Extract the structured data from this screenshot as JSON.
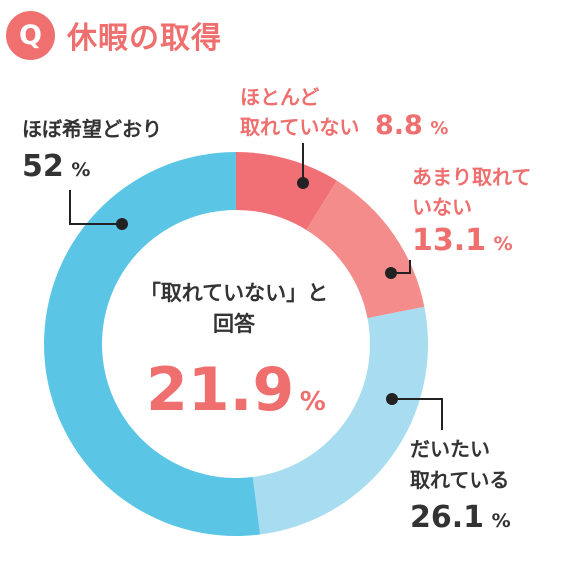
{
  "header": {
    "badge": "Q",
    "title": "休暇の取得"
  },
  "center": {
    "line1": "「取れていない」と",
    "line2": "回答",
    "value": "21.9",
    "unit": "%"
  },
  "colors": {
    "hotondo": "#f07076",
    "amari": "#f48c8c",
    "daitai": "#a8dcf0",
    "hobo": "#5bc5e6",
    "pink_text": "#ef6e6e",
    "dark_text": "#333333"
  },
  "chart_data": {
    "type": "pie",
    "variant": "donut",
    "title": "休暇の取得",
    "unit": "%",
    "series": [
      {
        "label": "ほとんど取れていない",
        "value": 8.8
      },
      {
        "label": "あまり取れていない",
        "value": 13.1
      },
      {
        "label": "だいたい取れている",
        "value": 26.1
      },
      {
        "label": "ほぼ希望どおり",
        "value": 52
      }
    ],
    "center_annotation": {
      "text": "「取れていない」と回答",
      "value": 21.9
    }
  },
  "labels": {
    "hotondo": {
      "line1": "ほとんど",
      "line2": "取れていない",
      "num": "8.8",
      "unit": "%"
    },
    "amari": {
      "line1": "あまり取れて",
      "line2": "いない",
      "num": "13.1",
      "unit": "%"
    },
    "daitai": {
      "line1": "だいたい",
      "line2": "取れている",
      "num": "26.1",
      "unit": "%"
    },
    "hobo": {
      "line1": "ほぼ希望どおり",
      "num": "52",
      "unit": "%"
    }
  }
}
